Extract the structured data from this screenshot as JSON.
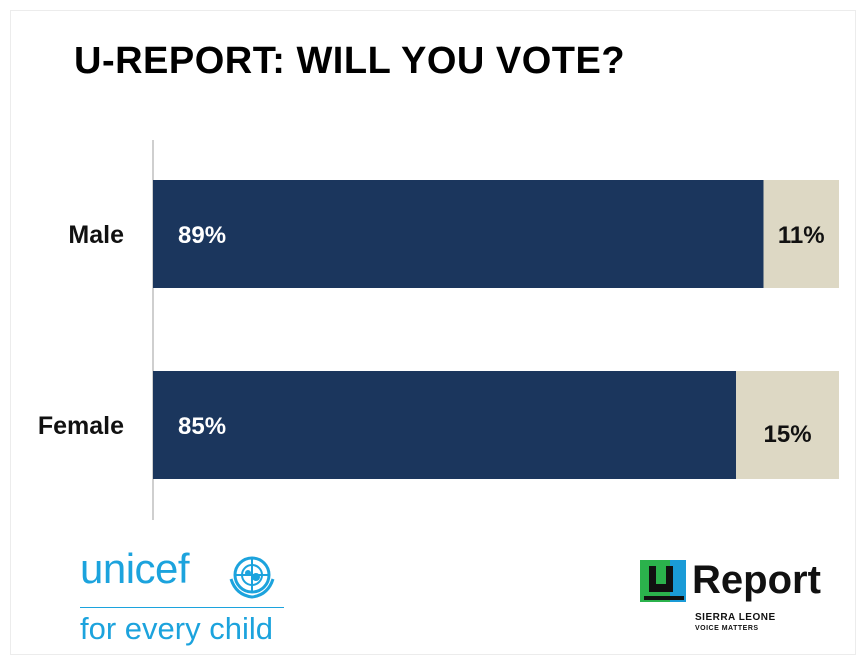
{
  "title": "U-REPORT: WILL YOU VOTE?",
  "chart_data": {
    "type": "bar",
    "orientation": "horizontal",
    "stacked": true,
    "categories": [
      "Male",
      "Female"
    ],
    "series": [
      {
        "values": [
          89,
          85
        ],
        "labels": [
          "89%",
          "85%"
        ],
        "color": "#1b365d"
      },
      {
        "values": [
          11,
          15
        ],
        "labels": [
          "11%",
          "15%"
        ],
        "color": "#ddd8c4"
      }
    ],
    "xlim": [
      0,
      100
    ],
    "grid": false,
    "legend": "none"
  },
  "logos": {
    "unicef": {
      "wordmark": "unicef",
      "tagline": "for every child",
      "color": "#1ca3dd",
      "emblem_icon": "un-globe-emblem-icon"
    },
    "ureport": {
      "wordmark": "Report",
      "line1": "SIERRA LEONE",
      "line2": "VOICE MATTERS",
      "icon": "ureport-u-icon",
      "icon_colors": [
        "#2bb24c",
        "#1a9bd7"
      ]
    }
  }
}
